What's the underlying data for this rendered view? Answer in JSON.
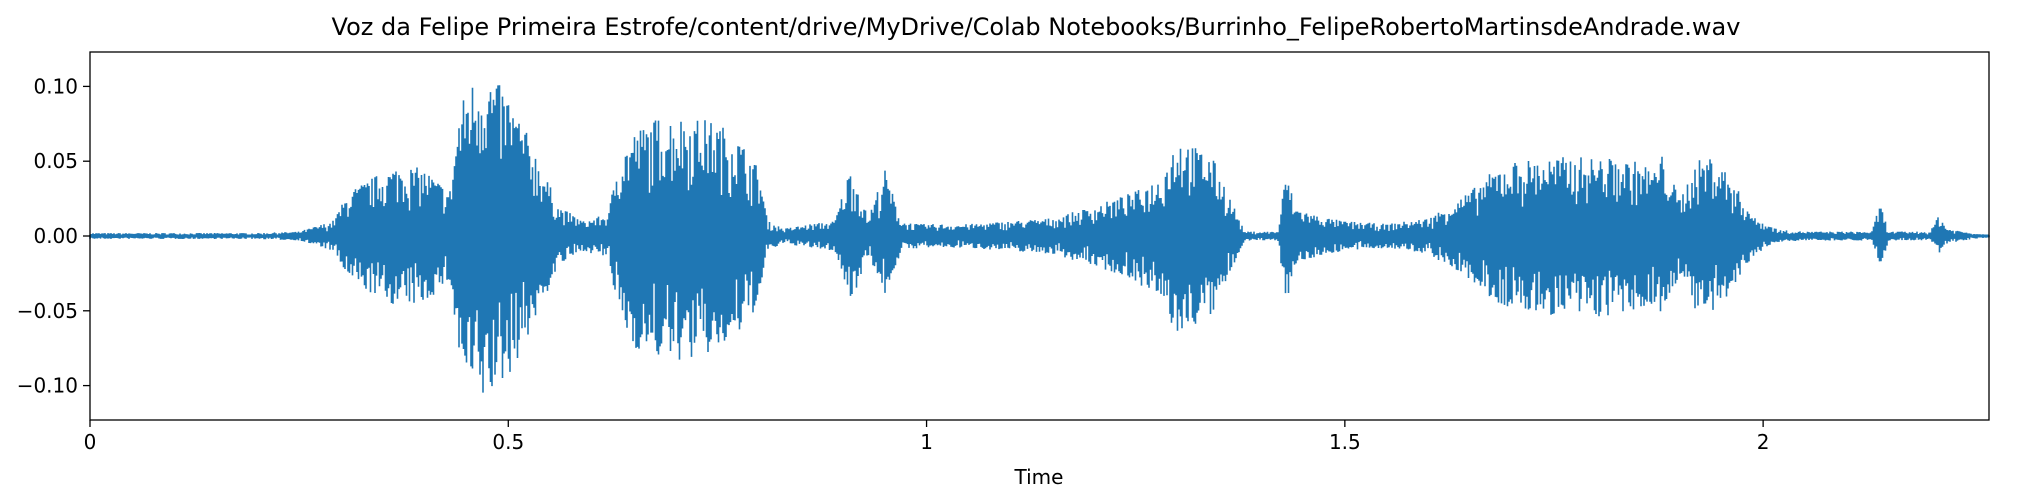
{
  "chart_data": {
    "type": "line",
    "title": "Voz da Felipe Primeira Estrofe/content/drive/MyDrive/Colab Notebooks/Burrinho_FelipeRobertoMartinsdeAndrade.wav",
    "xlabel": "Time",
    "ylabel": "",
    "xlim": [
      0,
      2.27
    ],
    "ylim": [
      -0.123,
      0.123
    ],
    "grid": false,
    "legend": "none",
    "color": "#1f77b4",
    "x_ticks": [
      {
        "value": 0,
        "label": "0"
      },
      {
        "value": 0.5,
        "label": "0.5"
      },
      {
        "value": 1,
        "label": "1"
      },
      {
        "value": 1.5,
        "label": "1.5"
      },
      {
        "value": 2,
        "label": "2"
      }
    ],
    "y_ticks": [
      {
        "value": 0.1,
        "label": "0.10"
      },
      {
        "value": 0.05,
        "label": "0.05"
      },
      {
        "value": 0.0,
        "label": "0.00"
      },
      {
        "value": -0.05,
        "label": "−0.05"
      },
      {
        "value": -0.1,
        "label": "−0.10"
      }
    ],
    "envelope": {
      "description_units": "time in seconds, amplitude",
      "time": [
        0,
        0.05,
        0.1,
        0.15,
        0.2,
        0.25,
        0.29,
        0.31,
        0.34,
        0.37,
        0.4,
        0.43,
        0.44,
        0.45,
        0.47,
        0.5,
        0.53,
        0.56,
        0.59,
        0.62,
        0.63,
        0.65,
        0.68,
        0.71,
        0.74,
        0.77,
        0.8,
        0.81,
        0.83,
        0.86,
        0.89,
        0.91,
        0.93,
        0.95,
        0.97,
        0.99,
        1.0,
        1.05,
        1.1,
        1.15,
        1.2,
        1.25,
        1.28,
        1.3,
        1.32,
        1.34,
        1.36,
        1.38,
        1.42,
        1.43,
        1.44,
        1.46,
        1.48,
        1.5,
        1.55,
        1.6,
        1.65,
        1.68,
        1.7,
        1.73,
        1.76,
        1.79,
        1.82,
        1.85,
        1.87,
        1.88,
        1.9,
        1.92,
        1.94,
        1.96,
        1.99,
        2.02,
        2.05,
        2.1,
        2.13,
        2.14,
        2.15,
        2.18,
        2.2,
        2.21,
        2.22,
        2.25,
        2.27
      ],
      "upper": [
        0.002,
        0.002,
        0.002,
        0.002,
        0.002,
        0.003,
        0.01,
        0.03,
        0.04,
        0.048,
        0.045,
        0.03,
        0.08,
        0.1,
        0.112,
        0.095,
        0.06,
        0.02,
        0.01,
        0.015,
        0.05,
        0.07,
        0.08,
        0.08,
        0.078,
        0.07,
        0.045,
        0.01,
        0.005,
        0.008,
        0.01,
        0.048,
        0.012,
        0.045,
        0.01,
        0.008,
        0.008,
        0.008,
        0.01,
        0.012,
        0.02,
        0.03,
        0.04,
        0.068,
        0.06,
        0.055,
        0.03,
        0.003,
        0.003,
        0.045,
        0.02,
        0.015,
        0.012,
        0.01,
        0.008,
        0.012,
        0.03,
        0.045,
        0.05,
        0.052,
        0.053,
        0.053,
        0.052,
        0.05,
        0.045,
        0.055,
        0.025,
        0.05,
        0.055,
        0.04,
        0.012,
        0.004,
        0.003,
        0.003,
        0.003,
        0.022,
        0.003,
        0.003,
        0.003,
        0.015,
        0.005,
        0.002,
        0.001
      ],
      "lower": [
        -0.002,
        -0.002,
        -0.002,
        -0.002,
        -0.002,
        -0.003,
        -0.01,
        -0.03,
        -0.04,
        -0.048,
        -0.045,
        -0.03,
        -0.08,
        -0.1,
        -0.112,
        -0.095,
        -0.06,
        -0.02,
        -0.01,
        -0.015,
        -0.05,
        -0.075,
        -0.082,
        -0.084,
        -0.08,
        -0.072,
        -0.045,
        -0.01,
        -0.005,
        -0.008,
        -0.01,
        -0.045,
        -0.012,
        -0.04,
        -0.01,
        -0.008,
        -0.008,
        -0.008,
        -0.01,
        -0.012,
        -0.02,
        -0.03,
        -0.045,
        -0.068,
        -0.06,
        -0.055,
        -0.03,
        -0.003,
        -0.003,
        -0.045,
        -0.02,
        -0.015,
        -0.012,
        -0.01,
        -0.008,
        -0.012,
        -0.03,
        -0.045,
        -0.05,
        -0.052,
        -0.054,
        -0.055,
        -0.054,
        -0.052,
        -0.045,
        -0.055,
        -0.025,
        -0.052,
        -0.055,
        -0.04,
        -0.012,
        -0.004,
        -0.003,
        -0.003,
        -0.003,
        -0.022,
        -0.003,
        -0.003,
        -0.003,
        -0.012,
        -0.005,
        -0.002,
        -0.001
      ]
    }
  }
}
